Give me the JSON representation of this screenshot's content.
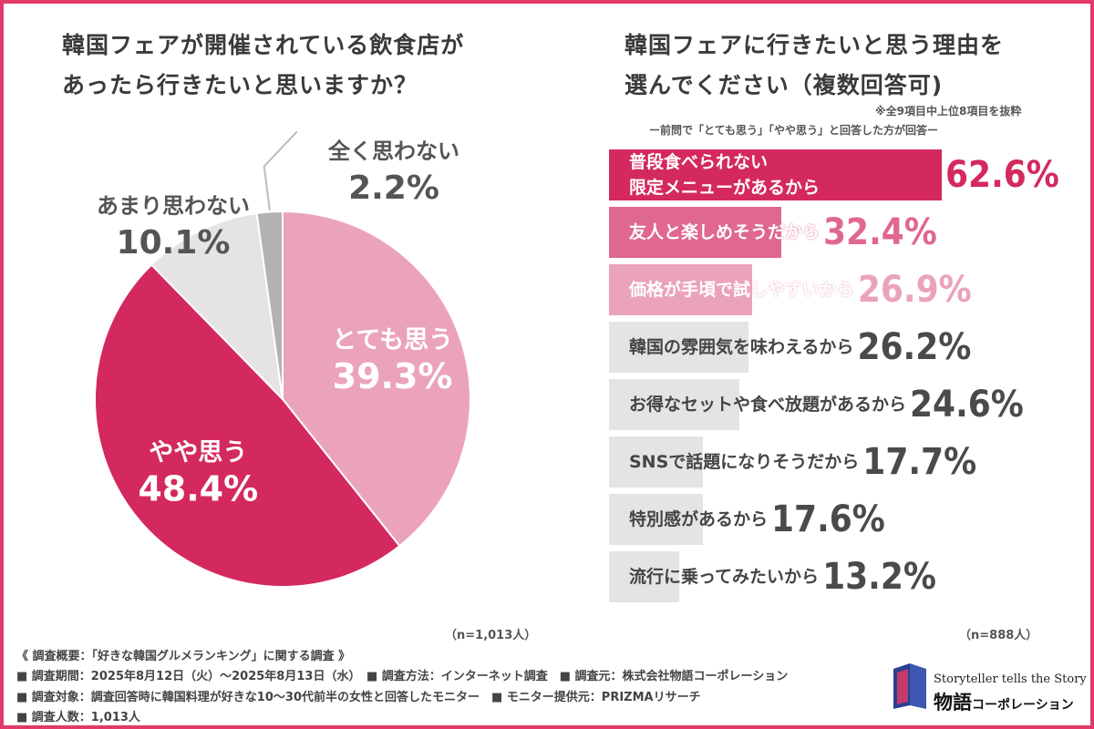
{
  "left_title_line1": "韓国フェアが開催されている飲食店が",
  "left_title_line2": "あったら行きたいと思いますか？",
  "right_title_line1": "韓国フェアに行きたいと思う理由を",
  "right_title_line2": "選んでください（複数回答可)",
  "right_note1": "※全9項目中上位8項目を抜粋",
  "right_note2": "ー前問で「とても思う」「やや思う」と回答した方が回答ー",
  "left_n": "（n=1,013人）",
  "right_n": "（n=888人）",
  "chart_data": [
    {
      "type": "pie",
      "slices": [
        {
          "label": "とても思う",
          "value": 39.3,
          "display": "39.3%",
          "color": "#eba3bc"
        },
        {
          "label": "やや思う",
          "value": 48.4,
          "display": "48.4%",
          "color": "#d4295e"
        },
        {
          "label": "あまり思わない",
          "value": 10.1,
          "display": "10.1%",
          "color": "#e6e3e6"
        },
        {
          "label": "全く思わない",
          "value": 2.2,
          "display": "2.2%",
          "color": "#b3b1b3"
        }
      ]
    },
    {
      "type": "bar",
      "orientation": "horizontal",
      "categories": [
        "普段食べられない限定メニューがあるから",
        "友人と楽しめそうだから",
        "価格が手頃で試しやすいから",
        "韓国の雰囲気を味わえるから",
        "お得なセットや食べ放題があるから",
        "SNSで話題になりそうだから",
        "特別感があるから",
        "流行に乗ってみたいから"
      ],
      "label_lines": [
        [
          "普段食べられない",
          "限定メニューがあるから"
        ],
        [
          "友人と楽しめそうだから"
        ],
        [
          "価格が手頃で試しやすいから"
        ],
        [
          "韓国の雰囲気を味わえるから"
        ],
        [
          "お得なセットや食べ放題があるから"
        ],
        [
          "SNSで話題になりそうだから"
        ],
        [
          "特別感があるから"
        ],
        [
          "流行に乗ってみたいから"
        ]
      ],
      "values": [
        62.6,
        32.4,
        26.9,
        26.2,
        24.6,
        17.7,
        17.6,
        13.2
      ],
      "display": [
        "62.6%",
        "32.4%",
        "26.9%",
        "26.2%",
        "24.6%",
        "17.7%",
        "17.6%",
        "13.2%"
      ],
      "bar_colors": [
        "#d4295e",
        "#e0688f",
        "#eba3bc",
        "#e6e3e6",
        "#e6e3e6",
        "#e6e3e6",
        "#e6e3e6",
        "#e6e3e6"
      ],
      "value_colors": [
        "#d4295e",
        "#e0688f",
        "#eba3bc",
        "#4a4a4a",
        "#4a4a4a",
        "#4a4a4a",
        "#4a4a4a",
        "#4a4a4a"
      ]
    }
  ],
  "footer": {
    "line1": "《 調査概要：「好きな韓国グルメランキング」に関する調査 》",
    "line2": "■ 調査期間：2025年8月12日（火）～2025年8月13日（水）　■ 調査方法：インターネット調査　■ 調査元：株式会社物語コーポレーション",
    "line3": "■ 調査対象：調査回答時に韓国料理が好きな10～30代前半の女性と回答したモニター　■ モニター提供元：PRIZMAリサーチ",
    "line4": "■ 調査人数：1,013人"
  },
  "logo": {
    "tagline": "Storyteller tells the Story",
    "name_main": "物語",
    "name_sub": "コーポレーション"
  }
}
